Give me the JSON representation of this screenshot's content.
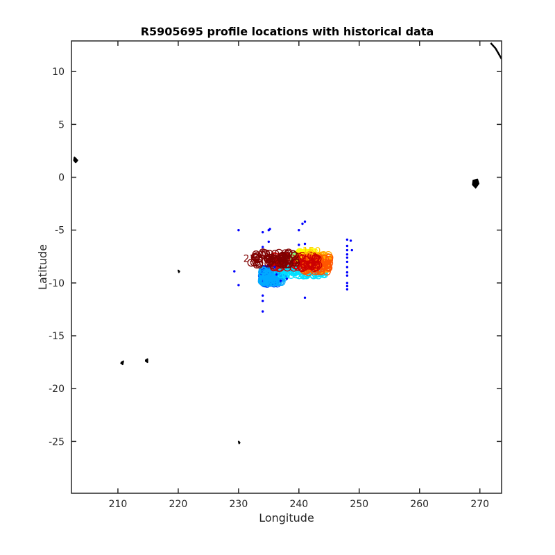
{
  "chart_data": {
    "type": "scatter",
    "title": "R5905695 profile locations with historical data",
    "xlabel": "Longitude",
    "ylabel": "Latitude",
    "xlim": [
      202.3,
      273.6
    ],
    "ylim": [
      -29.9,
      12.9
    ],
    "xticks": [
      210,
      220,
      230,
      240,
      250,
      260,
      270
    ],
    "yticks": [
      10,
      5,
      0,
      -5,
      -10,
      -15,
      -20,
      -25
    ],
    "grid": false,
    "historical_points": {
      "color": "#0000ff",
      "points": [
        [
          230.0,
          -5.0
        ],
        [
          234.0,
          -5.2
        ],
        [
          235.0,
          -5.0
        ],
        [
          235.2,
          -4.9
        ],
        [
          240.0,
          -5.0
        ],
        [
          240.6,
          -4.4
        ],
        [
          241.0,
          -4.2
        ],
        [
          234.0,
          -6.6
        ],
        [
          235.0,
          -6.1
        ],
        [
          240.0,
          -6.4
        ],
        [
          241.0,
          -6.3
        ],
        [
          229.3,
          -8.9
        ],
        [
          230.0,
          -10.2
        ],
        [
          234.0,
          -11.2
        ],
        [
          234.0,
          -11.7
        ],
        [
          234.0,
          -12.7
        ],
        [
          241.0,
          -11.4
        ],
        [
          248.0,
          -5.9
        ],
        [
          248.0,
          -6.5
        ],
        [
          248.0,
          -6.9
        ],
        [
          248.0,
          -7.3
        ],
        [
          248.0,
          -7.6
        ],
        [
          248.0,
          -8.0
        ],
        [
          248.0,
          -8.5
        ],
        [
          248.0,
          -9.0
        ],
        [
          248.0,
          -9.3
        ],
        [
          248.0,
          -10.0
        ],
        [
          248.0,
          -10.3
        ],
        [
          248.0,
          -10.6
        ],
        [
          248.6,
          -6.0
        ],
        [
          248.8,
          -6.9
        ],
        [
          236.0,
          -8.5
        ],
        [
          236.3,
          -9.2
        ],
        [
          237.0,
          -9.8
        ],
        [
          238.0,
          -9.6
        ]
      ]
    },
    "float_profiles": {
      "label_examples": [
        "150",
        "23"
      ],
      "colors": [
        "#0000cc",
        "#0055ff",
        "#00aaff",
        "#00e0ff",
        "#80ff80",
        "#ffff00",
        "#ffaa00",
        "#ff5500",
        "#cc0000",
        "#800000"
      ],
      "clusters": [
        {
          "color": "#0000cc",
          "lon": [
            234.0,
            236.0
          ],
          "lat": [
            -9.9,
            -8.6
          ]
        },
        {
          "color": "#0055ff",
          "lon": [
            233.8,
            236.5
          ],
          "lat": [
            -10.1,
            -8.9
          ]
        },
        {
          "color": "#00aaff",
          "lon": [
            233.8,
            237.5
          ],
          "lat": [
            -10.0,
            -8.8
          ]
        },
        {
          "color": "#00e0ff",
          "lon": [
            236.5,
            244.5
          ],
          "lat": [
            -9.3,
            -8.4
          ]
        },
        {
          "color": "#80ff80",
          "lon": [
            238.5,
            241.5
          ],
          "lat": [
            -8.1,
            -7.2
          ]
        },
        {
          "color": "#ffff00",
          "lon": [
            240.0,
            243.5
          ],
          "lat": [
            -7.9,
            -7.0
          ]
        },
        {
          "color": "#ffaa00",
          "lon": [
            241.0,
            245.0
          ],
          "lat": [
            -8.8,
            -7.3
          ]
        },
        {
          "color": "#ff5500",
          "lon": [
            240.5,
            245.2
          ],
          "lat": [
            -9.0,
            -7.5
          ]
        },
        {
          "color": "#cc0000",
          "lon": [
            235.5,
            243.5
          ],
          "lat": [
            -8.6,
            -7.4
          ]
        },
        {
          "color": "#800000",
          "lon": [
            232.0,
            239.5
          ],
          "lat": [
            -8.3,
            -7.1
          ]
        }
      ],
      "labels": [
        {
          "text": "150",
          "lon": 242.1,
          "lat": -7.3,
          "color": "#ffcc00"
        },
        {
          "text": "23",
          "lon": 231.8,
          "lat": -8.0,
          "color": "#800000"
        }
      ]
    },
    "land_features": [
      {
        "name": "coastline",
        "points": [
          [
            271.8,
            12.7
          ],
          [
            272.6,
            12.2
          ],
          [
            273.2,
            11.6
          ],
          [
            273.6,
            11.2
          ]
        ]
      },
      {
        "name": "island",
        "points": [
          [
            202.8,
            1.9
          ],
          [
            203.3,
            1.6
          ],
          [
            203.0,
            1.4
          ],
          [
            202.7,
            1.6
          ]
        ]
      },
      {
        "name": "island",
        "points": [
          [
            268.9,
            -0.3
          ],
          [
            269.6,
            -0.2
          ],
          [
            269.8,
            -0.6
          ],
          [
            269.3,
            -1.0
          ],
          [
            268.8,
            -0.7
          ]
        ]
      },
      {
        "name": "island",
        "points": [
          [
            220.0,
            -8.8
          ],
          [
            220.2,
            -8.9
          ],
          [
            220.1,
            -9.0
          ]
        ]
      },
      {
        "name": "island",
        "points": [
          [
            210.6,
            -17.5
          ],
          [
            210.9,
            -17.4
          ],
          [
            210.8,
            -17.7
          ],
          [
            210.5,
            -17.6
          ]
        ]
      },
      {
        "name": "island",
        "points": [
          [
            214.6,
            -17.3
          ],
          [
            214.9,
            -17.2
          ],
          [
            214.9,
            -17.5
          ],
          [
            214.6,
            -17.4
          ]
        ]
      },
      {
        "name": "island",
        "points": [
          [
            230.0,
            -25.0
          ],
          [
            230.2,
            -25.1
          ],
          [
            230.1,
            -25.2
          ]
        ]
      }
    ]
  }
}
